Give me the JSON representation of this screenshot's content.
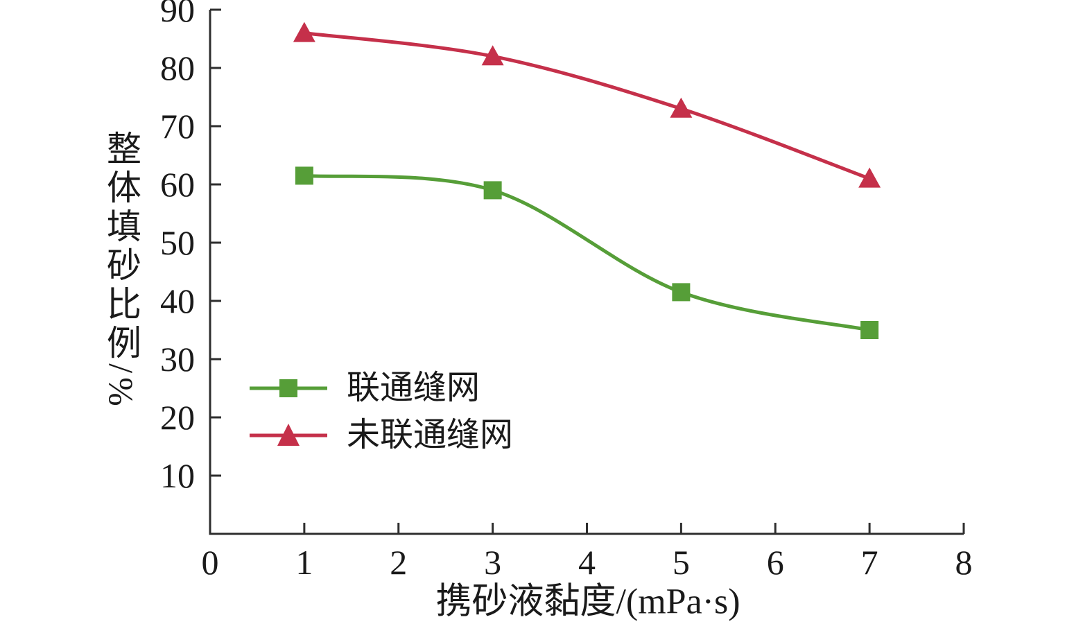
{
  "chart_data": {
    "type": "line",
    "title": "",
    "x": [
      1,
      3,
      5,
      7
    ],
    "series": [
      {
        "name": "联通缝网",
        "marker": "square",
        "color": "#569e38",
        "values": [
          61.5,
          59,
          41.5,
          35
        ]
      },
      {
        "name": "未联通缝网",
        "marker": "triangle",
        "color": "#c5304a",
        "values": [
          86,
          82,
          73,
          61
        ]
      }
    ],
    "xlabel": "携砂液黏度/(mPa·s)",
    "ylabel": "整体填砂比例/%",
    "xlim": [
      0,
      8
    ],
    "ylim": [
      0,
      90
    ],
    "xticks": [
      0,
      1,
      2,
      3,
      4,
      5,
      6,
      7,
      8
    ],
    "yticks": [
      10,
      20,
      30,
      40,
      50,
      60,
      70,
      80,
      90
    ],
    "grid": false,
    "legend_position": "inside-left",
    "axis_color": "#2e2e2e",
    "text_color": "#1a1a1a"
  }
}
